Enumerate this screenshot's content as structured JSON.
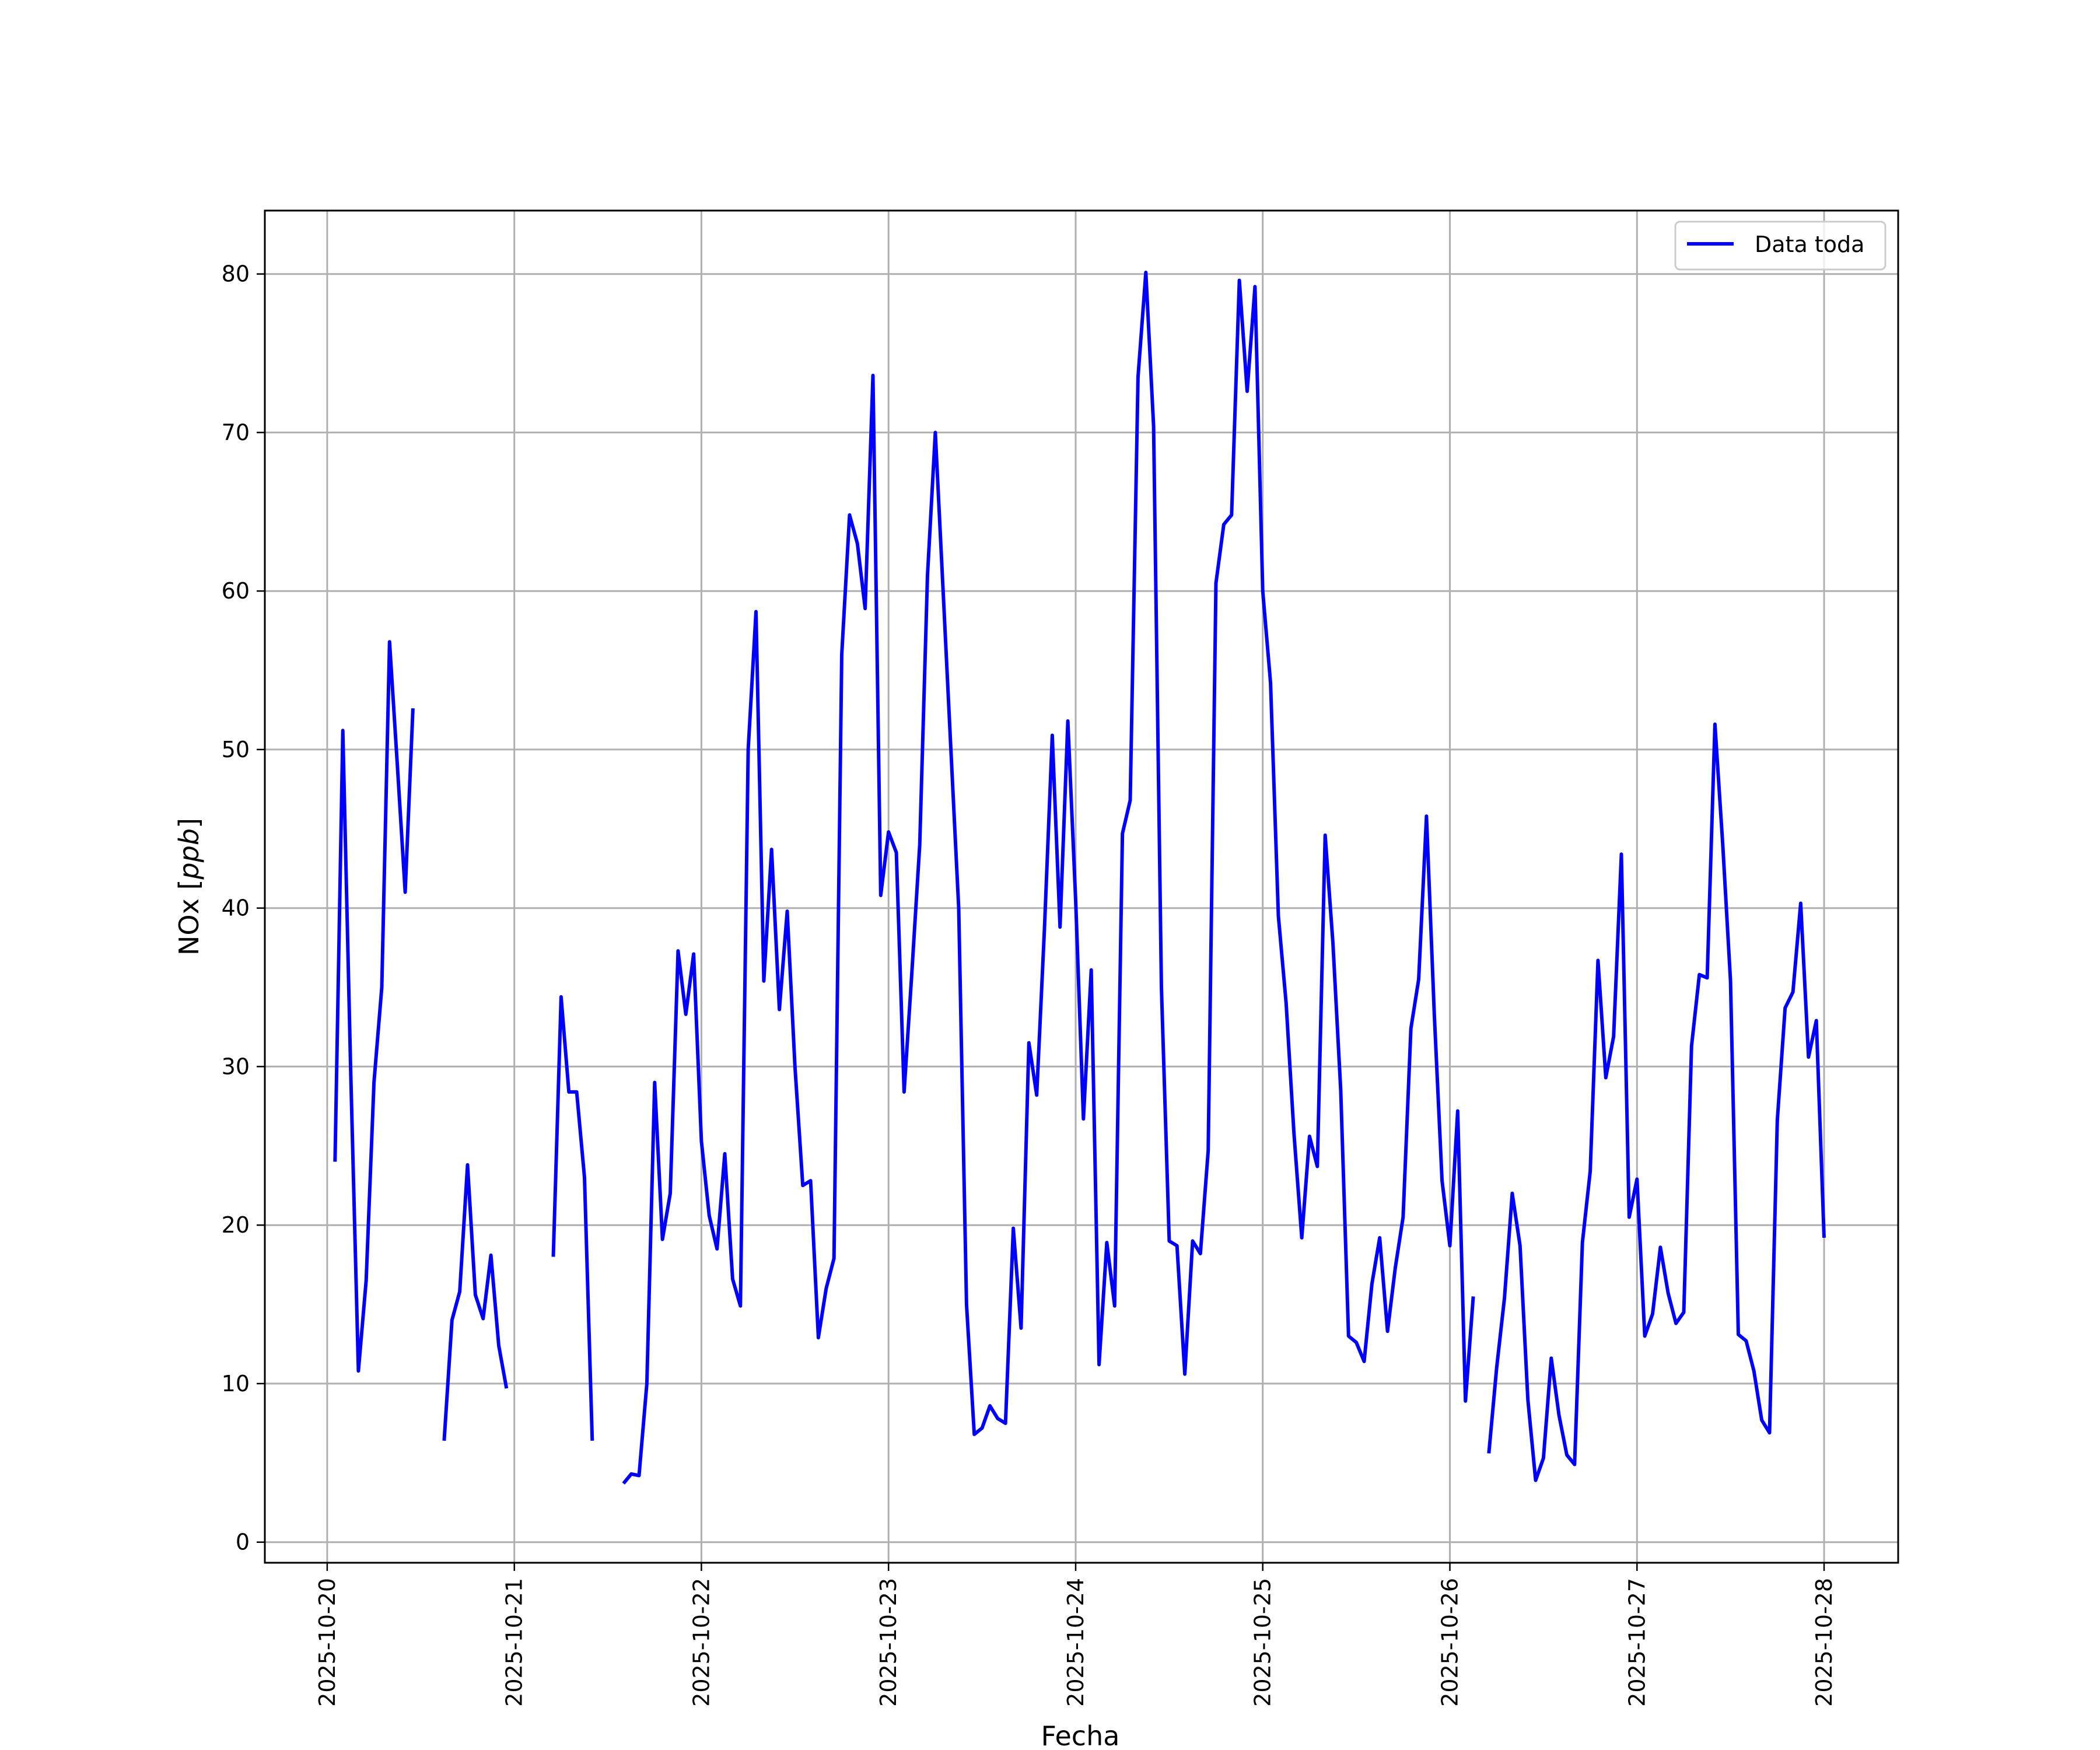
{
  "chart_data": {
    "type": "line",
    "xlabel": "Fecha",
    "ylabel": "NOx [ppb]",
    "ylabel_main": "NOx [",
    "ylabel_unit": "ppb",
    "ylabel_close": "]",
    "ylim": [
      -1.3,
      84
    ],
    "xlim": [
      "2025-10-19T16:00",
      "2025-10-28T09:30"
    ],
    "grid": true,
    "legend_position": "top-right",
    "x_ticks": [
      "2025-10-20",
      "2025-10-21",
      "2025-10-22",
      "2025-10-23",
      "2025-10-24",
      "2025-10-25",
      "2025-10-26",
      "2025-10-27",
      "2025-10-28"
    ],
    "y_ticks": [
      0,
      10,
      20,
      30,
      40,
      50,
      60,
      70,
      80
    ],
    "series": [
      {
        "name": "Data toda",
        "color": "#0000ff",
        "points": [
          [
            "2025-10-20T01:00",
            24.0
          ],
          [
            "2025-10-20T02:00",
            51.2
          ],
          [
            "2025-10-20T03:00",
            30.0
          ],
          [
            "2025-10-20T04:00",
            10.8
          ],
          [
            "2025-10-20T05:00",
            16.5
          ],
          [
            "2025-10-20T06:00",
            29.0
          ],
          [
            "2025-10-20T07:00",
            35.0
          ],
          [
            "2025-10-20T08:00",
            56.8
          ],
          [
            "2025-10-20T09:00",
            49.0
          ],
          [
            "2025-10-20T10:00",
            41.0
          ],
          [
            "2025-10-20T11:00",
            52.6
          ],
          [
            "2025-10-20T12:00",
            null
          ],
          [
            "2025-10-20T15:00",
            6.4
          ],
          [
            "2025-10-20T16:00",
            14.0
          ],
          [
            "2025-10-20T17:00",
            15.8
          ],
          [
            "2025-10-20T18:00",
            23.8
          ],
          [
            "2025-10-20T19:00",
            15.6
          ],
          [
            "2025-10-20T20:00",
            14.1
          ],
          [
            "2025-10-20T21:00",
            18.1
          ],
          [
            "2025-10-20T22:00",
            12.4
          ],
          [
            "2025-10-20T23:00",
            9.7
          ],
          [
            "2025-10-21T00:00",
            null
          ],
          [
            "2025-10-21T05:00",
            18.0
          ],
          [
            "2025-10-21T06:00",
            34.4
          ],
          [
            "2025-10-21T07:00",
            28.4
          ],
          [
            "2025-10-21T08:00",
            28.4
          ],
          [
            "2025-10-21T09:00",
            23.0
          ],
          [
            "2025-10-21T10:00",
            6.4
          ],
          [
            "2025-10-21T11:00",
            null
          ],
          [
            "2025-10-21T14:00",
            3.7
          ],
          [
            "2025-10-21T15:00",
            4.3
          ],
          [
            "2025-10-21T16:00",
            4.2
          ],
          [
            "2025-10-21T17:00",
            10.0
          ],
          [
            "2025-10-21T18:00",
            29.0
          ],
          [
            "2025-10-21T19:00",
            19.1
          ],
          [
            "2025-10-21T20:00",
            22.0
          ],
          [
            "2025-10-21T21:00",
            37.3
          ],
          [
            "2025-10-21T22:00",
            33.3
          ],
          [
            "2025-10-21T23:00",
            37.1
          ],
          [
            "2025-10-22T00:00",
            25.3
          ],
          [
            "2025-10-22T01:00",
            20.6
          ],
          [
            "2025-10-22T02:00",
            18.5
          ],
          [
            "2025-10-22T03:00",
            24.5
          ],
          [
            "2025-10-22T04:00",
            16.6
          ],
          [
            "2025-10-22T05:00",
            14.9
          ],
          [
            "2025-10-22T06:00",
            50.0
          ],
          [
            "2025-10-22T07:00",
            58.7
          ],
          [
            "2025-10-22T08:00",
            35.4
          ],
          [
            "2025-10-22T09:00",
            43.7
          ],
          [
            "2025-10-22T10:00",
            33.6
          ],
          [
            "2025-10-22T11:00",
            39.8
          ],
          [
            "2025-10-22T12:00",
            30.0
          ],
          [
            "2025-10-22T13:00",
            22.5
          ],
          [
            "2025-10-22T14:00",
            22.8
          ],
          [
            "2025-10-22T15:00",
            12.9
          ],
          [
            "2025-10-22T16:00",
            16.0
          ],
          [
            "2025-10-22T17:00",
            17.9
          ],
          [
            "2025-10-22T18:00",
            56.0
          ],
          [
            "2025-10-22T19:00",
            64.8
          ],
          [
            "2025-10-22T20:00",
            63.0
          ],
          [
            "2025-10-22T21:00",
            58.9
          ],
          [
            "2025-10-22T22:00",
            73.6
          ],
          [
            "2025-10-22T23:00",
            40.8
          ],
          [
            "2025-10-23T00:00",
            44.8
          ],
          [
            "2025-10-23T01:00",
            43.5
          ],
          [
            "2025-10-23T02:00",
            28.4
          ],
          [
            "2025-10-23T03:00",
            36.0
          ],
          [
            "2025-10-23T04:00",
            44.0
          ],
          [
            "2025-10-23T05:00",
            61.0
          ],
          [
            "2025-10-23T06:00",
            70.0
          ],
          [
            "2025-10-23T07:00",
            60.0
          ],
          [
            "2025-10-23T08:00",
            50.0
          ],
          [
            "2025-10-23T09:00",
            40.0
          ],
          [
            "2025-10-23T10:00",
            15.0
          ],
          [
            "2025-10-23T11:00",
            6.8
          ],
          [
            "2025-10-23T12:00",
            7.2
          ],
          [
            "2025-10-23T13:00",
            8.6
          ],
          [
            "2025-10-23T14:00",
            7.8
          ],
          [
            "2025-10-23T15:00",
            7.5
          ],
          [
            "2025-10-23T16:00",
            19.8
          ],
          [
            "2025-10-23T17:00",
            13.5
          ],
          [
            "2025-10-23T18:00",
            31.5
          ],
          [
            "2025-10-23T19:00",
            28.2
          ],
          [
            "2025-10-23T20:00",
            38.7
          ],
          [
            "2025-10-23T21:00",
            50.9
          ],
          [
            "2025-10-23T22:00",
            38.8
          ],
          [
            "2025-10-23T23:00",
            51.8
          ],
          [
            "2025-10-24T00:00",
            40.5
          ],
          [
            "2025-10-24T01:00",
            26.7
          ],
          [
            "2025-10-24T02:00",
            36.1
          ],
          [
            "2025-10-24T03:00",
            11.2
          ],
          [
            "2025-10-24T04:00",
            18.9
          ],
          [
            "2025-10-24T05:00",
            14.9
          ],
          [
            "2025-10-24T06:00",
            44.7
          ],
          [
            "2025-10-24T07:00",
            46.8
          ],
          [
            "2025-10-24T08:00",
            73.5
          ],
          [
            "2025-10-24T09:00",
            80.1
          ],
          [
            "2025-10-24T10:00",
            70.4
          ],
          [
            "2025-10-24T11:00",
            35.0
          ],
          [
            "2025-10-24T12:00",
            19.0
          ],
          [
            "2025-10-24T13:00",
            18.7
          ],
          [
            "2025-10-24T14:00",
            10.6
          ],
          [
            "2025-10-24T15:00",
            19.0
          ],
          [
            "2025-10-24T16:00",
            18.2
          ],
          [
            "2025-10-24T17:00",
            24.7
          ],
          [
            "2025-10-24T18:00",
            60.5
          ],
          [
            "2025-10-24T19:00",
            64.2
          ],
          [
            "2025-10-24T20:00",
            64.8
          ],
          [
            "2025-10-24T21:00",
            79.6
          ],
          [
            "2025-10-24T22:00",
            72.6
          ],
          [
            "2025-10-24T23:00",
            79.2
          ],
          [
            "2025-10-25T00:00",
            60.0
          ],
          [
            "2025-10-25T01:00",
            54.2
          ],
          [
            "2025-10-25T02:00",
            39.5
          ],
          [
            "2025-10-25T03:00",
            34.0
          ],
          [
            "2025-10-25T04:00",
            25.8
          ],
          [
            "2025-10-25T05:00",
            19.2
          ],
          [
            "2025-10-25T06:00",
            25.6
          ],
          [
            "2025-10-25T07:00",
            23.7
          ],
          [
            "2025-10-25T08:00",
            44.6
          ],
          [
            "2025-10-25T09:00",
            37.8
          ],
          [
            "2025-10-25T10:00",
            28.5
          ],
          [
            "2025-10-25T11:00",
            13.0
          ],
          [
            "2025-10-25T12:00",
            12.6
          ],
          [
            "2025-10-25T13:00",
            11.4
          ],
          [
            "2025-10-25T14:00",
            16.3
          ],
          [
            "2025-10-25T15:00",
            19.2
          ],
          [
            "2025-10-25T16:00",
            13.3
          ],
          [
            "2025-10-25T17:00",
            17.3
          ],
          [
            "2025-10-25T18:00",
            20.5
          ],
          [
            "2025-10-25T19:00",
            32.4
          ],
          [
            "2025-10-25T20:00",
            35.5
          ],
          [
            "2025-10-25T21:00",
            45.8
          ],
          [
            "2025-10-25T22:00",
            33.3
          ],
          [
            "2025-10-25T23:00",
            22.8
          ],
          [
            "2025-10-26T00:00",
            18.7
          ],
          [
            "2025-10-26T01:00",
            27.2
          ],
          [
            "2025-10-26T02:00",
            8.9
          ],
          [
            "2025-10-26T03:00",
            15.5
          ],
          [
            "2025-10-26T04:00",
            null
          ],
          [
            "2025-10-26T05:00",
            5.6
          ],
          [
            "2025-10-26T06:00",
            11.0
          ],
          [
            "2025-10-26T07:00",
            15.4
          ],
          [
            "2025-10-26T08:00",
            22.0
          ],
          [
            "2025-10-26T09:00",
            18.7
          ],
          [
            "2025-10-26T10:00",
            9.0
          ],
          [
            "2025-10-26T11:00",
            3.9
          ],
          [
            "2025-10-26T12:00",
            5.3
          ],
          [
            "2025-10-26T13:00",
            11.6
          ],
          [
            "2025-10-26T14:00",
            8.0
          ],
          [
            "2025-10-26T15:00",
            5.5
          ],
          [
            "2025-10-26T16:00",
            4.9
          ],
          [
            "2025-10-26T17:00",
            18.9
          ],
          [
            "2025-10-26T18:00",
            23.4
          ],
          [
            "2025-10-26T19:00",
            36.7
          ],
          [
            "2025-10-26T20:00",
            29.3
          ],
          [
            "2025-10-26T21:00",
            31.9
          ],
          [
            "2025-10-26T22:00",
            43.4
          ],
          [
            "2025-10-26T23:00",
            20.5
          ],
          [
            "2025-10-27T00:00",
            22.9
          ],
          [
            "2025-10-27T01:00",
            13.0
          ],
          [
            "2025-10-27T02:00",
            14.4
          ],
          [
            "2025-10-27T03:00",
            18.6
          ],
          [
            "2025-10-27T04:00",
            15.7
          ],
          [
            "2025-10-27T05:00",
            13.8
          ],
          [
            "2025-10-27T06:00",
            14.5
          ],
          [
            "2025-10-27T07:00",
            31.3
          ],
          [
            "2025-10-27T08:00",
            35.8
          ],
          [
            "2025-10-27T09:00",
            35.6
          ],
          [
            "2025-10-27T10:00",
            51.6
          ],
          [
            "2025-10-27T11:00",
            44.0
          ],
          [
            "2025-10-27T12:00",
            35.4
          ],
          [
            "2025-10-27T13:00",
            13.1
          ],
          [
            "2025-10-27T14:00",
            12.7
          ],
          [
            "2025-10-27T15:00",
            10.8
          ],
          [
            "2025-10-27T16:00",
            7.7
          ],
          [
            "2025-10-27T17:00",
            6.9
          ],
          [
            "2025-10-27T18:00",
            26.6
          ],
          [
            "2025-10-27T19:00",
            33.7
          ],
          [
            "2025-10-27T20:00",
            34.7
          ],
          [
            "2025-10-27T21:00",
            40.3
          ],
          [
            "2025-10-27T22:00",
            30.6
          ],
          [
            "2025-10-27T23:00",
            32.9
          ],
          [
            "2025-10-28T00:00",
            19.2
          ]
        ]
      }
    ]
  }
}
